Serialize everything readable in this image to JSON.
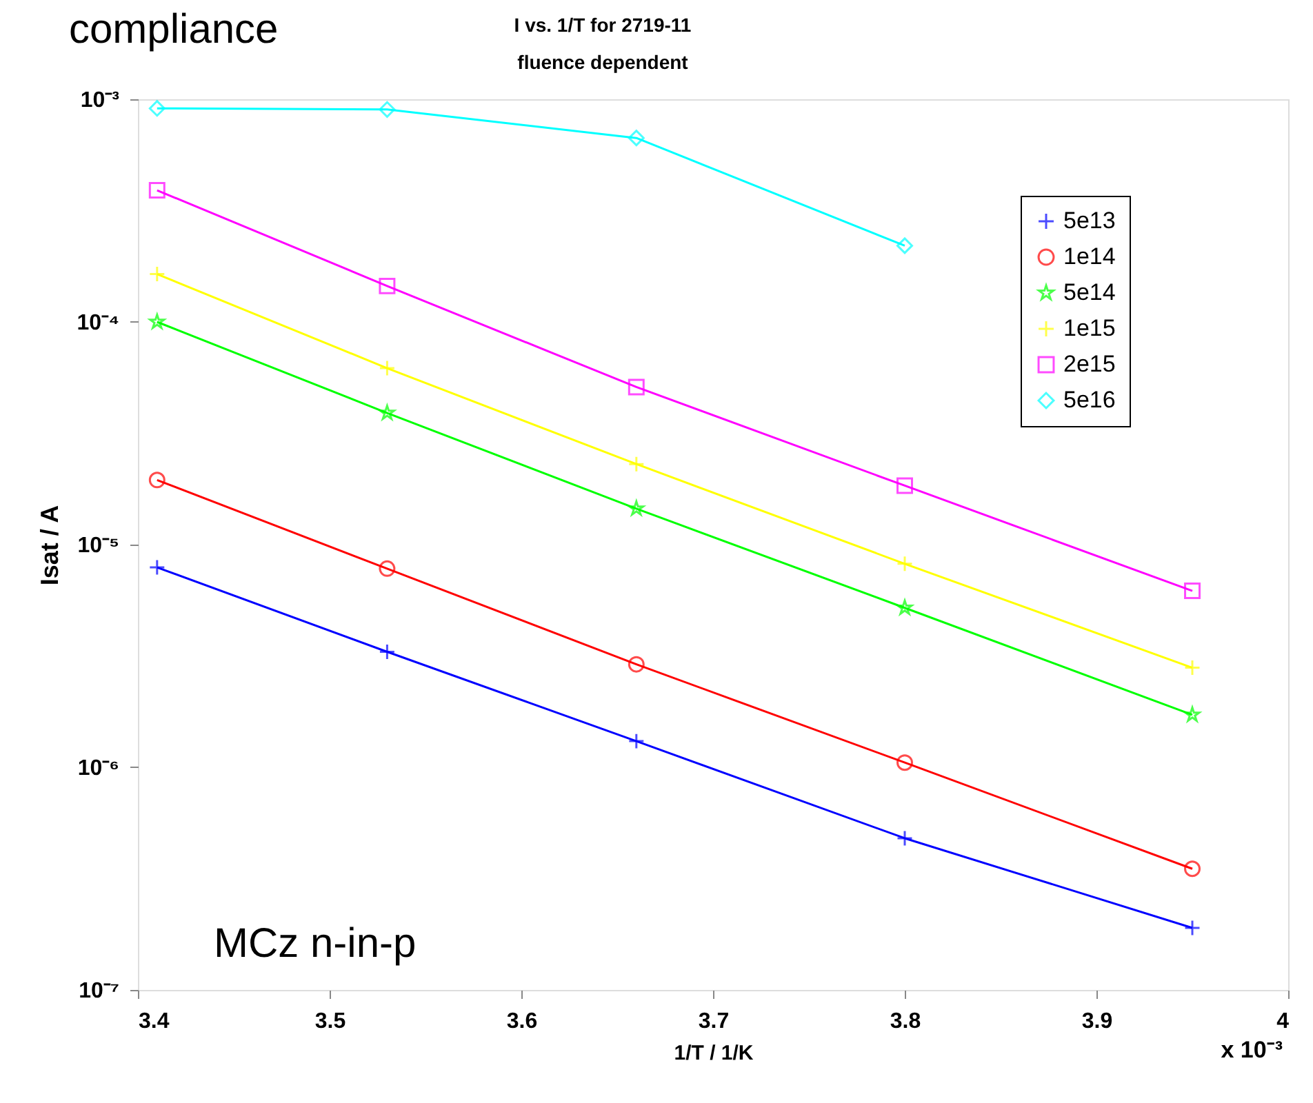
{
  "chart_data": {
    "type": "line",
    "title": "I vs. 1/T for 2719-11",
    "subtitle": "fluence dependent",
    "xlabel": "1/T / 1/K",
    "ylabel": "Isat / A",
    "x": [
      3.41,
      3.53,
      3.66,
      3.8,
      3.95
    ],
    "xlim": [
      3.4,
      4.0
    ],
    "xticks": [
      3.4,
      3.5,
      3.6,
      3.7,
      3.8,
      3.9,
      4
    ],
    "ylim": [
      1e-07,
      0.001
    ],
    "log": true,
    "yticks": [
      {
        "value": 1e-07,
        "label": "10⁻⁷"
      },
      {
        "value": 1e-06,
        "label": "10⁻⁶"
      },
      {
        "value": 1e-05,
        "label": "10⁻⁵"
      },
      {
        "value": 0.0001,
        "label": "10⁻⁴"
      },
      {
        "value": 0.001,
        "label": "10⁻³"
      }
    ],
    "grid": false,
    "legend": "top right",
    "line_style": "solid",
    "series": [
      {
        "name": "5e13",
        "color": "#0000ff",
        "marker": "cross",
        "values": [
          7.9e-06,
          3.3e-06,
          1.31e-06,
          4.8e-07,
          1.9e-07
        ]
      },
      {
        "name": "1e14",
        "color": "#ff0000",
        "marker": "circle",
        "values": [
          1.95e-05,
          7.8e-06,
          2.9e-06,
          1.05e-06,
          3.5e-07
        ]
      },
      {
        "name": "5e14",
        "color": "#00ff00",
        "marker": "star",
        "values": [
          0.0001,
          3.9e-05,
          1.45e-05,
          5.2e-06,
          1.72e-06
        ]
      },
      {
        "name": "1e15",
        "color": "#ffff00",
        "marker": "cross",
        "values": [
          0.000164,
          6.2e-05,
          2.3e-05,
          8.2e-06,
          2.8e-06
        ]
      },
      {
        "name": "2e15",
        "color": "#ff00ff",
        "marker": "square",
        "values": [
          0.00039,
          0.000145,
          5.1e-05,
          1.84e-05,
          6.2e-06
        ]
      },
      {
        "name": "5e16",
        "color": "#00ffff",
        "marker": "diamond",
        "values": [
          0.00091,
          0.0009,
          0.00067,
          0.00022,
          null
        ]
      }
    ],
    "annotations": [
      "compliance",
      "MCz n-in-p",
      "x 10⁻³"
    ]
  }
}
